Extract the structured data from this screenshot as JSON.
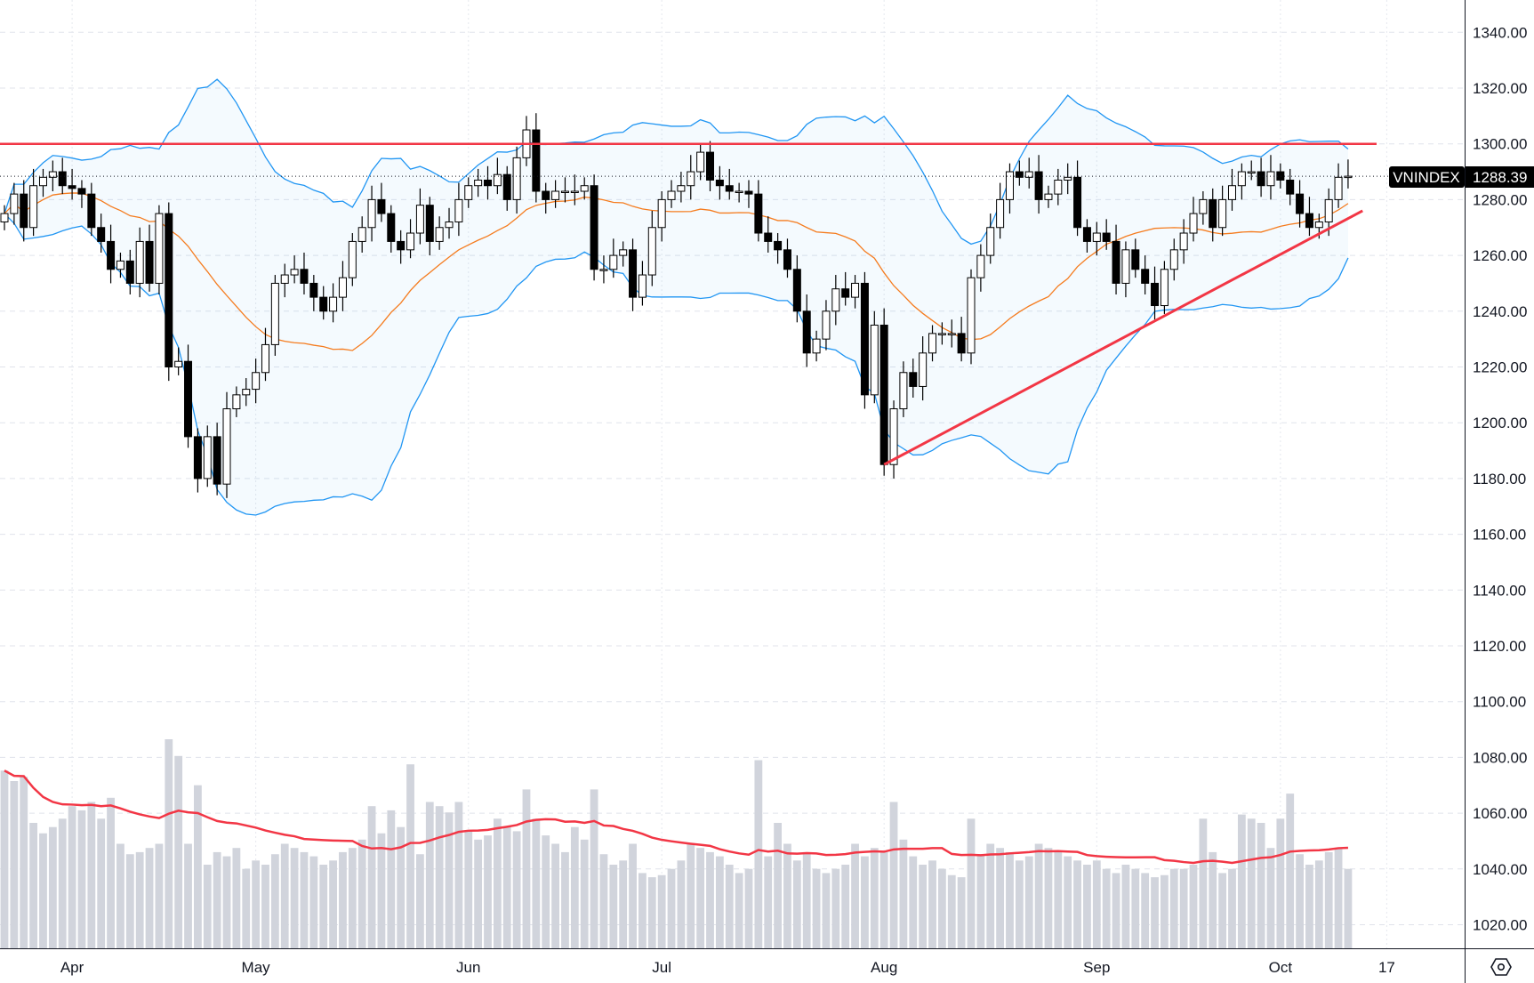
{
  "chart_data": {
    "type": "candlestick",
    "symbol": "VNINDEX",
    "last_price": "1288.39",
    "y_ticks": [
      "1340.00",
      "1320.00",
      "1300.00",
      "1280.00",
      "1260.00",
      "1240.00",
      "1220.00",
      "1200.00",
      "1180.00",
      "1160.00",
      "1140.00",
      "1120.00",
      "1100.00",
      "1080.00",
      "1060.00",
      "1040.00",
      "1020.00"
    ],
    "ylim": [
      1020,
      1340
    ],
    "x_labels": [
      {
        "label": "Apr",
        "index": 7
      },
      {
        "label": "May",
        "index": 26
      },
      {
        "label": "Jun",
        "index": 48
      },
      {
        "label": "Jul",
        "index": 68
      },
      {
        "label": "Aug",
        "index": 91
      },
      {
        "label": "Sep",
        "index": 113
      },
      {
        "label": "Oct",
        "index": 132
      },
      {
        "label": "17",
        "index": 143
      }
    ],
    "close": [
      1275,
      1282,
      1270,
      1285,
      1288,
      1290,
      1285,
      1284,
      1282,
      1270,
      1265,
      1255,
      1258,
      1250,
      1265,
      1250,
      1275,
      1220,
      1222,
      1195,
      1180,
      1195,
      1178,
      1205,
      1210,
      1212,
      1218,
      1228,
      1250,
      1253,
      1255,
      1250,
      1245,
      1240,
      1245,
      1252,
      1265,
      1270,
      1280,
      1275,
      1265,
      1262,
      1268,
      1278,
      1265,
      1270,
      1272,
      1280,
      1285,
      1287,
      1285,
      1289,
      1280,
      1295,
      1305,
      1283,
      1280,
      1283,
      1283,
      1283,
      1285,
      1255,
      1255,
      1260,
      1262,
      1245,
      1253,
      1270,
      1280,
      1283,
      1285,
      1290,
      1297,
      1287,
      1285,
      1283,
      1283,
      1282,
      1268,
      1265,
      1262,
      1255,
      1240,
      1225,
      1230,
      1240,
      1248,
      1245,
      1250,
      1210,
      1235,
      1185,
      1205,
      1218,
      1213,
      1225,
      1232,
      1232,
      1232,
      1225,
      1252,
      1260,
      1270,
      1280,
      1290,
      1288,
      1290,
      1280,
      1282,
      1287,
      1288,
      1270,
      1265,
      1268,
      1265,
      1250,
      1262,
      1255,
      1250,
      1242,
      1255,
      1262,
      1268,
      1275,
      1280,
      1270,
      1280,
      1285,
      1290,
      1290,
      1285,
      1290,
      1287,
      1282,
      1275,
      1270,
      1272,
      1280,
      1288,
      1288.39
    ],
    "volume": [
      85,
      80,
      82,
      60,
      55,
      58,
      62,
      68,
      66,
      70,
      62,
      72,
      50,
      45,
      46,
      48,
      50,
      100,
      92,
      50,
      78,
      40,
      46,
      44,
      48,
      38,
      42,
      40,
      45,
      50,
      48,
      46,
      44,
      40,
      42,
      46,
      48,
      52,
      68,
      55,
      66,
      58,
      88,
      45,
      70,
      68,
      65,
      70,
      56,
      52,
      54,
      62,
      58,
      56,
      76,
      62,
      54,
      50,
      46,
      58,
      52,
      76,
      45,
      40,
      42,
      50,
      36,
      34,
      35,
      38,
      42,
      50,
      48,
      46,
      44,
      40,
      36,
      38,
      90,
      44,
      60,
      50,
      42,
      46,
      38,
      36,
      38,
      40,
      50,
      44,
      48,
      46,
      70,
      52,
      44,
      40,
      42,
      38,
      35,
      34,
      62,
      45,
      50,
      48,
      46,
      42,
      44,
      50,
      48,
      46,
      44,
      42,
      40,
      42,
      38,
      36,
      40,
      38,
      36,
      34,
      35,
      38,
      38,
      40,
      62,
      46,
      36,
      38,
      64,
      62,
      60,
      48,
      62,
      74,
      45,
      40,
      42,
      46,
      48,
      38
    ],
    "indicators": {
      "bollinger_period": 20,
      "bollinger_std": 2,
      "ma_period": 20,
      "volume_ma_period": 20
    },
    "annotations": {
      "resistance": 1300,
      "trendline": [
        {
          "index": 91,
          "price": 1185
        },
        {
          "index": 140.5,
          "price": 1276
        }
      ]
    },
    "colors": {
      "up": "#ffffff",
      "down": "#000000",
      "band": "#2196f3",
      "ma": "#f57c1f",
      "lines": "#f23645",
      "volume": "#d1d4dc",
      "vol_ma": "#f23645"
    }
  }
}
